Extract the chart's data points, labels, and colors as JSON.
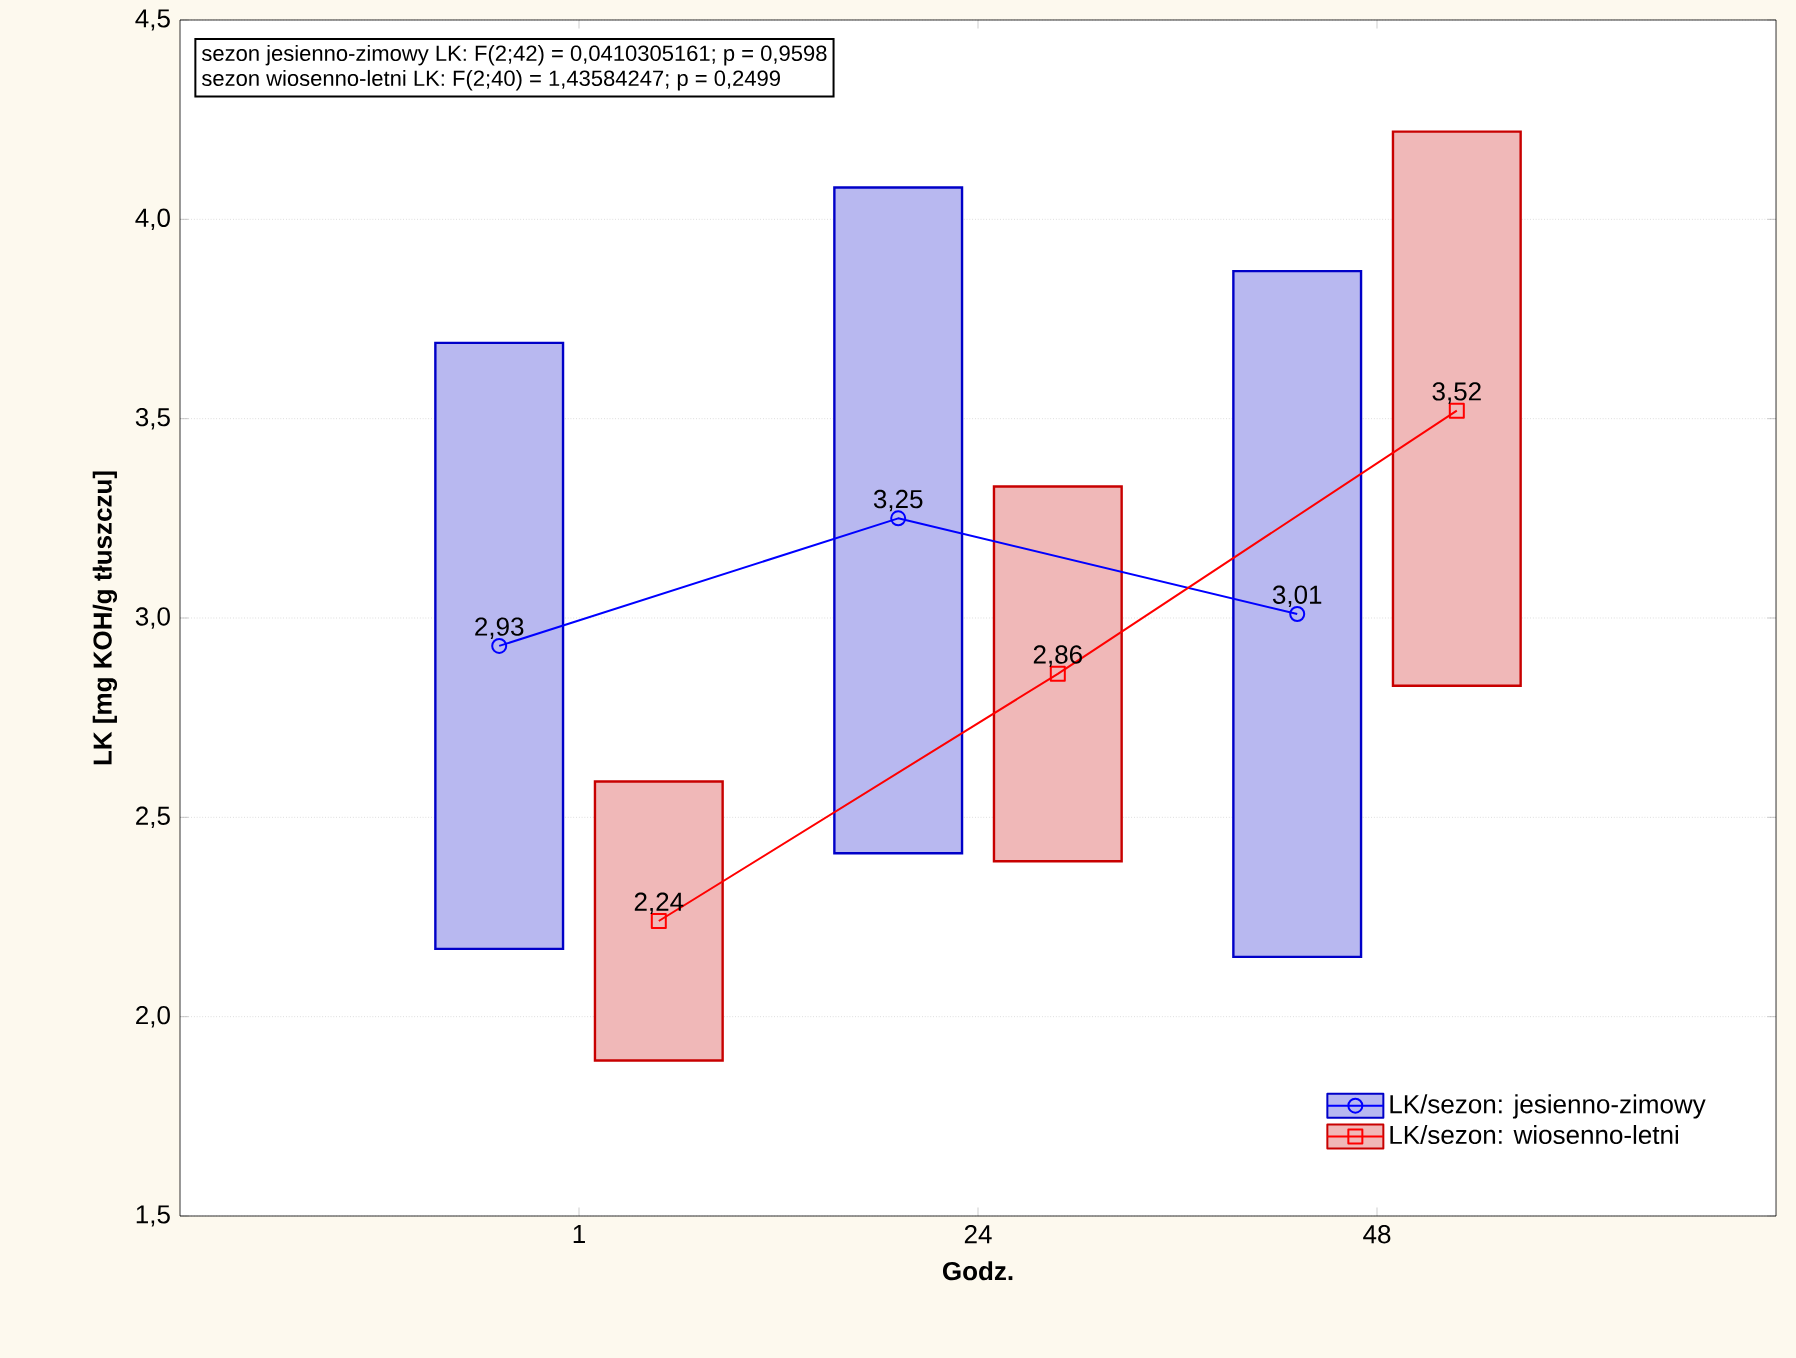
{
  "chart_data": {
    "type": "bar",
    "xlabel": "Godz.",
    "ylabel": "LK [mg KOH/g tłuszczu]",
    "categories": [
      "1",
      "24",
      "48"
    ],
    "series": [
      {
        "color": "#0000c8",
        "base": [
          2.17,
          2.41,
          2.15
        ],
        "values": [
          1.52,
          1.67,
          1.72
        ]
      },
      {
        "color": "#c80000",
        "base": [
          1.89,
          2.39,
          2.83
        ],
        "values": [
          0.7,
          0.94,
          1.39
        ]
      },
      {
        "type": "line",
        "name": "LK/sezon: jesienno-zimowy",
        "color": "#0000ff",
        "marker": "circle",
        "values": [
          2.93,
          3.25,
          3.01
        ],
        "value_labels": [
          "2,93",
          "3,25",
          "3,01"
        ]
      },
      {
        "type": "line",
        "name": "LK/sezon: wiosenno-letni",
        "color": "#ff0000",
        "marker": "square",
        "values": [
          2.24,
          2.86,
          3.52
        ],
        "value_labels": [
          "2,24",
          "2,86",
          "3,52"
        ]
      }
    ],
    "ylim": [
      1.5,
      4.5
    ],
    "yticks": [
      {
        "value": 1.5,
        "label": "1,5"
      },
      {
        "value": 2.0,
        "label": "2,0"
      },
      {
        "value": 2.5,
        "label": "2,5"
      },
      {
        "value": 3.0,
        "label": "3,0"
      },
      {
        "value": 3.5,
        "label": "3,5"
      },
      {
        "value": 4.0,
        "label": "4,0"
      },
      {
        "value": 4.5,
        "label": "4,5"
      }
    ],
    "grid": "y",
    "legend": "bottom right",
    "annotations": [
      "sezon jesienno-zimowy  LK:   F(2;42) = 0,0410305161; p = 0,9598",
      "sezon wiosenno-letni  LK:   F(2;40) =   1,43584247; p = 0,2499"
    ]
  }
}
